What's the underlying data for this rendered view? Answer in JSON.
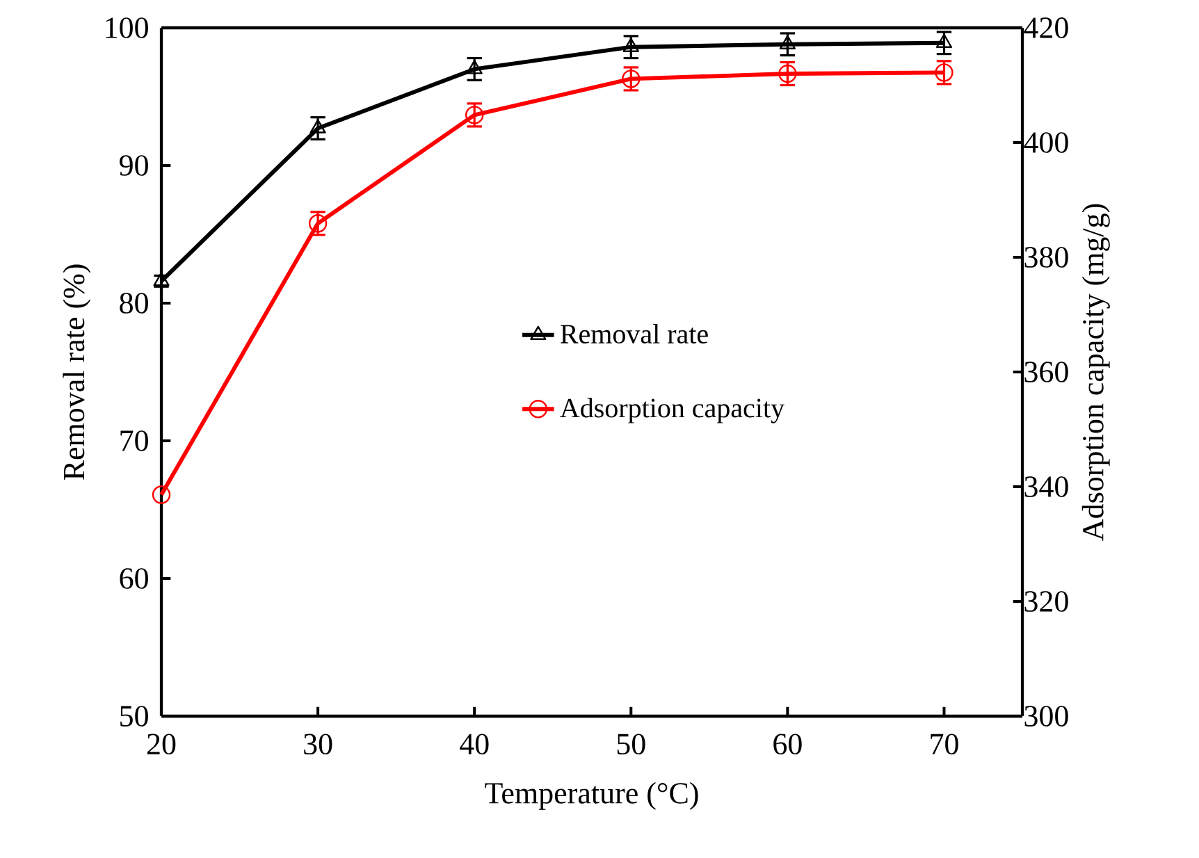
{
  "chart_data": {
    "type": "line",
    "xlabel": "Temperature  (°C)",
    "ylabel": "Removal rate  (%)",
    "y2label": "Adsorption capacity  (mg/g)",
    "x": [
      20,
      30,
      40,
      50,
      60,
      70
    ],
    "xlim": [
      20,
      75
    ],
    "xticks": [
      20,
      30,
      40,
      50,
      60,
      70
    ],
    "ylim": [
      50,
      100
    ],
    "yticks": [
      50,
      60,
      70,
      80,
      90,
      100
    ],
    "y2lim": [
      300,
      420
    ],
    "y2ticks": [
      300,
      320,
      340,
      360,
      380,
      400,
      420
    ],
    "legend": "center",
    "series": [
      {
        "name": "Removal rate",
        "color": "#000000",
        "marker": "triangle",
        "values": [
          81.6,
          92.7,
          97.0,
          98.6,
          98.8,
          98.9
        ],
        "errors": [
          0.4,
          0.8,
          0.8,
          0.8,
          0.8,
          0.8
        ]
      },
      {
        "name": "Adsorption capacity",
        "color": "#ff0000",
        "marker": "circle",
        "axis": "y2",
        "values": [
          338.6,
          385.9,
          404.8,
          411.1,
          412.0,
          412.2
        ],
        "errors": [
          null,
          2,
          2,
          2,
          2,
          2
        ]
      }
    ]
  }
}
